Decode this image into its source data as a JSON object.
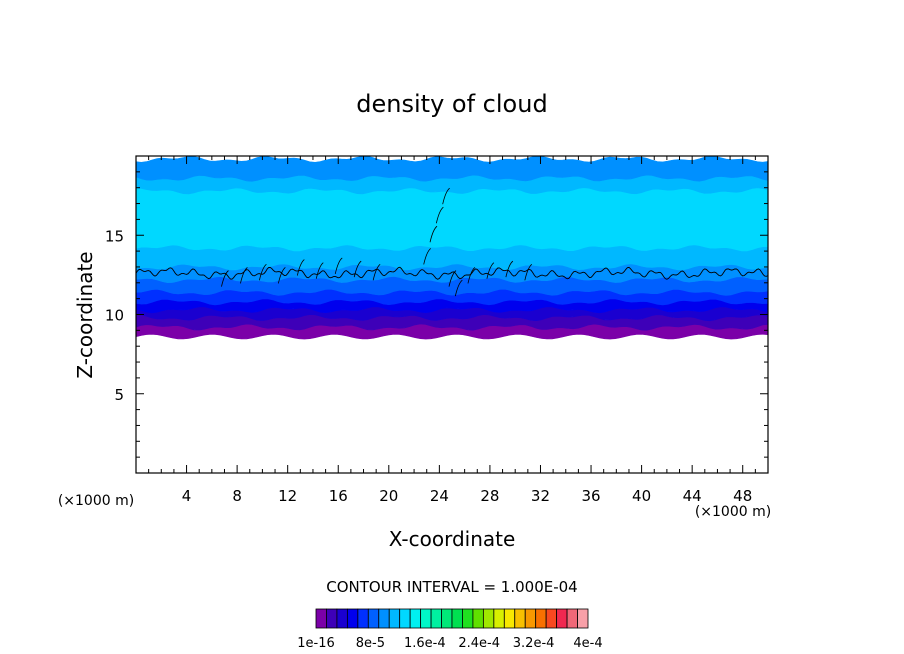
{
  "chart_data": {
    "type": "heatmap",
    "title": "density of cloud",
    "xlabel": "X-coordinate",
    "ylabel": "Z-coordinate",
    "x_unit": "(×1000 m)",
    "y_unit": "(×1000 m)",
    "xlim": [
      0,
      50
    ],
    "ylim": [
      0,
      20
    ],
    "x_ticks": [
      4,
      8,
      12,
      16,
      20,
      24,
      28,
      32,
      36,
      40,
      44,
      48
    ],
    "y_ticks": [
      5,
      10,
      15
    ],
    "contour_interval_text": "CONTOUR INTERVAL = 1.000E-04",
    "colorbar_labels": [
      "1e-16",
      "8e-5",
      "1.6e-4",
      "2.4e-4",
      "3.2e-4",
      "4e-4"
    ],
    "colorbar_colors": [
      "#7B00A8",
      "#3E00B8",
      "#1A00D0",
      "#0000EE",
      "#0030FF",
      "#0060FF",
      "#0090FF",
      "#00B8FF",
      "#00D8FF",
      "#00F0F0",
      "#00F8C8",
      "#00F0A0",
      "#00E878",
      "#00E050",
      "#20E020",
      "#60E000",
      "#A0E800",
      "#D8F000",
      "#F8E800",
      "#F8C000",
      "#F89800",
      "#F87000",
      "#F84820",
      "#F02850",
      "#F06878",
      "#F8A0A8"
    ],
    "bands": [
      {
        "z_from": 8.6,
        "z_to": 9.2,
        "color": "#7B00A8"
      },
      {
        "z_from": 9.2,
        "z_to": 9.8,
        "color": "#3E00B8"
      },
      {
        "z_from": 9.8,
        "z_to": 10.3,
        "color": "#1A00D0"
      },
      {
        "z_from": 10.3,
        "z_to": 10.8,
        "color": "#0000EE"
      },
      {
        "z_from": 10.8,
        "z_to": 11.4,
        "color": "#0030FF"
      },
      {
        "z_from": 11.4,
        "z_to": 12.2,
        "color": "#0060FF"
      },
      {
        "z_from": 12.2,
        "z_to": 13.0,
        "color": "#0090FF"
      },
      {
        "z_from": 13.0,
        "z_to": 14.2,
        "color": "#00B8FF"
      },
      {
        "z_from": 14.2,
        "z_to": 17.8,
        "color": "#00D8FF"
      },
      {
        "z_from": 17.8,
        "z_to": 18.6,
        "color": "#00B8FF"
      },
      {
        "z_from": 18.6,
        "z_to": 19.8,
        "color": "#0090FF"
      }
    ],
    "contour_line_z": 12.6
  }
}
